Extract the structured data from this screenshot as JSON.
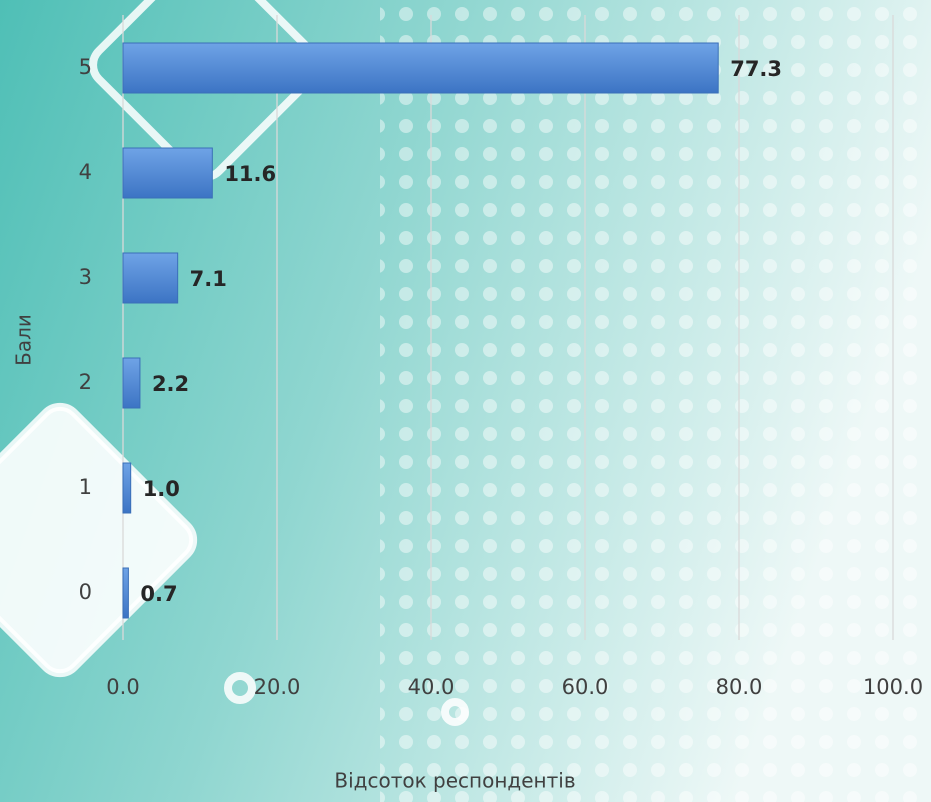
{
  "chart_data": {
    "type": "bar",
    "orientation": "horizontal",
    "categories": [
      "5",
      "4",
      "3",
      "2",
      "1",
      "0"
    ],
    "values": [
      77.3,
      11.6,
      7.1,
      2.2,
      1.0,
      0.7
    ],
    "value_labels": [
      "77.3",
      "11.6",
      "7.1",
      "2.2",
      "1.0",
      "0.7"
    ],
    "color": "#4a86d6",
    "xlim": [
      0,
      100
    ],
    "xticks": [
      {
        "value": 0,
        "label": "0.0"
      },
      {
        "value": 20,
        "label": "20.0"
      },
      {
        "value": 40,
        "label": "40.0"
      },
      {
        "value": 60,
        "label": "60.0"
      },
      {
        "value": 80,
        "label": "80.0"
      },
      {
        "value": 100,
        "label": "100.0"
      }
    ],
    "grid": true,
    "xlabel": "Відсоток респондентів",
    "ylabel": "Бали"
  }
}
